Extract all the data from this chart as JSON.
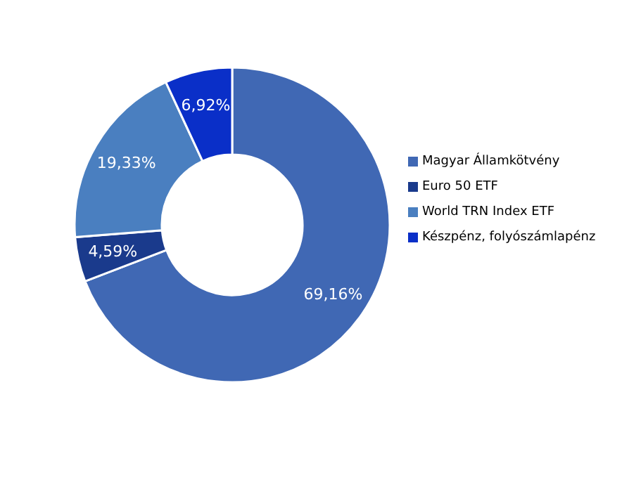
{
  "chart_data": {
    "type": "donut",
    "categories": [
      "Magyar Államkötvény",
      "Euro 50 ETF",
      "World TRN Index ETF",
      "Készpénz, folyószámlapénz"
    ],
    "values": [
      69.16,
      4.59,
      19.33,
      6.92
    ],
    "value_labels": [
      "69,16%",
      "4,59%",
      "19,33%",
      "6,92%"
    ],
    "colors": [
      "#4068b4",
      "#1a3a8c",
      "#4a7fc0",
      "#0a2fc8"
    ],
    "legend": "right"
  }
}
